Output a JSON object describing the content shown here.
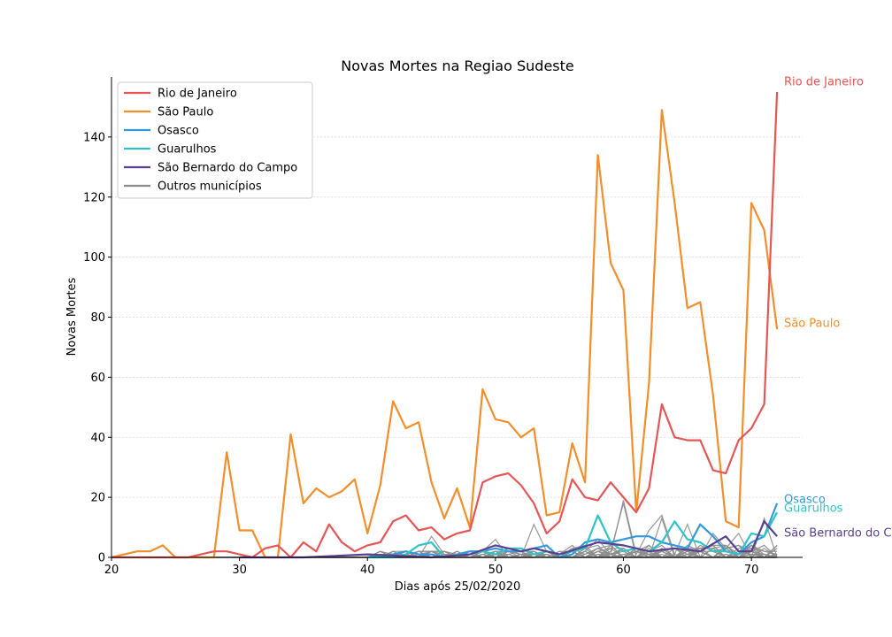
{
  "chart_data": {
    "type": "line",
    "title": "Novas Mortes na Regiao Sudeste",
    "xlabel": "Dias após 25/02/2020",
    "ylabel": "Novas Mortes",
    "xlim": [
      20,
      74
    ],
    "ylim": [
      0,
      160
    ],
    "xticks": [
      20,
      30,
      40,
      50,
      60,
      70
    ],
    "yticks": [
      0,
      20,
      40,
      60,
      80,
      100,
      120,
      140
    ],
    "grid": "horizontal dotted",
    "legend_position": "top-left",
    "series": [
      {
        "name": "Rio de Janeiro",
        "color": "#e45756",
        "end_label": "Rio de Janeiro",
        "x": [
          20,
          21,
          22,
          23,
          24,
          25,
          26,
          27,
          28,
          29,
          30,
          31,
          32,
          33,
          34,
          35,
          36,
          37,
          38,
          39,
          40,
          41,
          42,
          43,
          44,
          45,
          46,
          47,
          48,
          49,
          50,
          51,
          52,
          53,
          54,
          55,
          56,
          57,
          58,
          59,
          60,
          61,
          62,
          63,
          64,
          65,
          66,
          67,
          68,
          69,
          70,
          71,
          72
        ],
        "y": [
          0,
          0,
          0,
          0,
          0,
          0,
          0,
          1,
          2,
          2,
          1,
          0,
          3,
          4,
          0,
          5,
          2,
          11,
          5,
          2,
          4,
          5,
          12,
          14,
          9,
          10,
          6,
          8,
          9,
          25,
          27,
          28,
          24,
          18,
          8,
          12,
          26,
          20,
          19,
          25,
          20,
          15,
          23,
          51,
          40,
          39,
          39,
          29,
          28,
          39,
          43,
          51,
          155
        ]
      },
      {
        "name": "São Paulo",
        "color": "#f28e2b",
        "end_label": "São Paulo",
        "x": [
          20,
          21,
          22,
          23,
          24,
          25,
          26,
          27,
          28,
          29,
          30,
          31,
          32,
          33,
          34,
          35,
          36,
          37,
          38,
          39,
          40,
          41,
          42,
          43,
          44,
          45,
          46,
          47,
          48,
          49,
          50,
          51,
          52,
          53,
          54,
          55,
          56,
          57,
          58,
          59,
          60,
          61,
          62,
          63,
          64,
          65,
          66,
          67,
          68,
          69,
          70,
          71,
          72
        ],
        "y": [
          0,
          1,
          2,
          2,
          4,
          0,
          0,
          0,
          0,
          35,
          9,
          9,
          0,
          0,
          41,
          18,
          23,
          20,
          22,
          26,
          8,
          24,
          52,
          43,
          45,
          25,
          13,
          23,
          10,
          56,
          46,
          45,
          40,
          43,
          14,
          15,
          38,
          25,
          134,
          98,
          89,
          15,
          58,
          149,
          118,
          83,
          85,
          54,
          12,
          10,
          118,
          109,
          76
        ]
      },
      {
        "name": "Osasco",
        "color": "#3498db",
        "end_label": "Osasco",
        "x": [
          40,
          42,
          43,
          44,
          45,
          46,
          47,
          48,
          49,
          50,
          51,
          52,
          53,
          54,
          55,
          56,
          57,
          58,
          59,
          60,
          61,
          62,
          63,
          64,
          65,
          66,
          67,
          68,
          69,
          70,
          71,
          72
        ],
        "y": [
          0,
          1,
          2,
          1,
          1,
          0,
          1,
          2,
          2,
          3,
          2,
          2,
          3,
          4,
          0,
          1,
          5,
          6,
          5,
          6,
          7,
          7,
          5,
          4,
          3,
          11,
          7,
          2,
          1,
          5,
          7,
          18
        ]
      },
      {
        "name": "Guarulhos",
        "color": "#2ec4c6",
        "end_label": "Guarulhos",
        "x": [
          40,
          42,
          43,
          44,
          45,
          46,
          47,
          48,
          49,
          50,
          51,
          52,
          53,
          54,
          55,
          56,
          57,
          58,
          59,
          60,
          61,
          62,
          63,
          64,
          65,
          66,
          67,
          68,
          69,
          70,
          71,
          72
        ],
        "y": [
          0,
          0,
          1,
          4,
          5,
          0,
          1,
          1,
          2,
          1,
          3,
          3,
          1,
          2,
          1,
          2,
          3,
          14,
          5,
          2,
          3,
          2,
          5,
          12,
          6,
          5,
          2,
          2,
          1,
          8,
          7,
          15
        ]
      },
      {
        "name": "São Bernardo do Campo",
        "color": "#5b3f8f",
        "end_label": "São Bernardo do Campo",
        "x": [
          30,
          35,
          40,
          45,
          48,
          50,
          52,
          53,
          55,
          58,
          60,
          62,
          64,
          66,
          68,
          69,
          70,
          71,
          72
        ],
        "y": [
          0,
          0,
          1,
          0,
          1,
          4,
          2,
          3,
          1,
          5,
          4,
          2,
          3,
          2,
          7,
          2,
          2,
          12,
          7
        ]
      }
    ],
    "other_series": {
      "name": "Outros municípios",
      "color": "#8c8c8c"
    }
  }
}
